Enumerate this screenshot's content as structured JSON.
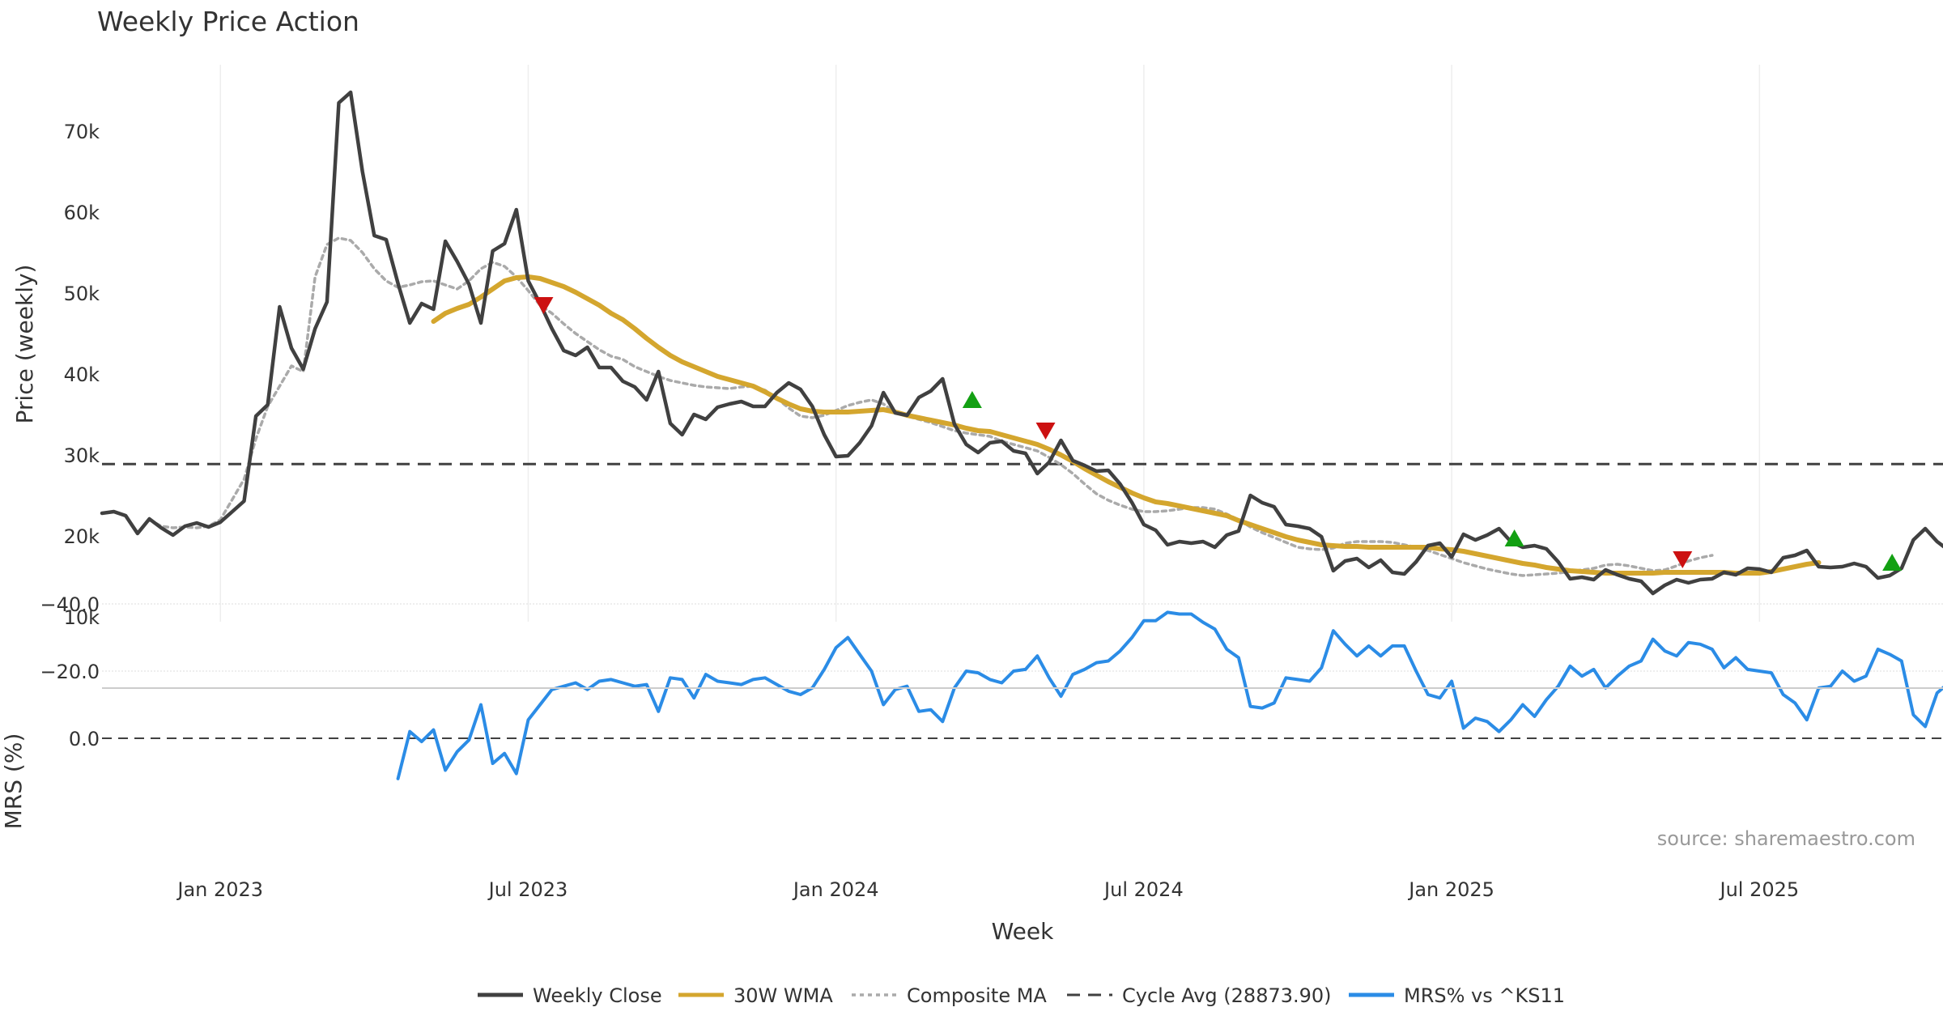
{
  "chart_data": {
    "type": "line",
    "title": "Weekly Price Action",
    "xlabel": "Week",
    "source_note": "source: sharemaestro.com",
    "x_ticks": [
      {
        "label": "Jan 2023",
        "week": 10
      },
      {
        "label": "Jul 2023",
        "week": 36
      },
      {
        "label": "Jan 2024",
        "week": 62
      },
      {
        "label": "Jul 2024",
        "week": 88
      },
      {
        "label": "Jan 2025",
        "week": 114
      },
      {
        "label": "Jul 2025",
        "week": 140
      }
    ],
    "x_range": [
      0,
      155.5
    ],
    "price_panel": {
      "ylabel": "Price (weekly)",
      "ylim": [
        10000,
        77000
      ],
      "yticks": [
        10000,
        20000,
        30000,
        40000,
        50000,
        60000,
        70000
      ],
      "ytick_labels": [
        "10k",
        "20k",
        "30k",
        "40k",
        "50k",
        "60k",
        "70k"
      ],
      "cycle_avg": 28873.9,
      "series": [
        {
          "name": "Weekly Close",
          "color": "#404040",
          "start": 0,
          "values": [
            22800,
            23000,
            22500,
            20300,
            22100,
            21000,
            20100,
            21200,
            21600,
            21100,
            21700,
            23000,
            24300,
            34800,
            36200,
            48300,
            43200,
            40600,
            45600,
            48900,
            73500,
            74800,
            65000,
            57100,
            56600,
            51200,
            46300,
            48700,
            48000,
            56400,
            53900,
            51100,
            46300,
            55200,
            56100,
            60300,
            51500,
            48700,
            45600,
            42900,
            42300,
            43300,
            40800,
            40800,
            39100,
            38400,
            36800,
            40300,
            33900,
            32500,
            35000,
            34400,
            35900,
            36300,
            36600,
            36000,
            36000,
            37700,
            38900,
            38100,
            36000,
            32500,
            29800,
            29900,
            31500,
            33600,
            37700,
            35200,
            34900,
            37100,
            37900,
            39400,
            33800,
            31300,
            30300,
            31500,
            31700,
            30500,
            30200,
            27700,
            29100,
            31800,
            29300,
            28700,
            28000,
            28100,
            26400,
            24100,
            21400,
            20700,
            18900,
            19300,
            19100,
            19300,
            18600,
            20100,
            20600,
            25000,
            24100,
            23600,
            21400,
            21200,
            20900,
            19900,
            15700,
            16900,
            17200,
            16100,
            17000,
            15500,
            15300,
            16800,
            18800,
            19100,
            17400,
            20200,
            19500,
            20100,
            20900,
            19300,
            18600,
            18800,
            18400,
            16800,
            14700,
            14900,
            14600,
            15800,
            15200,
            14700,
            14400,
            12900,
            13900,
            14600,
            14200,
            14600,
            14700,
            15500,
            15200,
            16000,
            15900,
            15500,
            17300,
            17600,
            18200,
            16200,
            16100,
            16200,
            16600,
            16200,
            14800,
            15100,
            16000,
            19500,
            20900,
            19300,
            18200
          ]
        },
        {
          "name": "30W WMA",
          "color": "#D4A62E",
          "start": 28,
          "values": [
            46500,
            47500,
            48100,
            48600,
            49500,
            50500,
            51500,
            51900,
            52000,
            51800,
            51300,
            50800,
            50100,
            49300,
            48500,
            47500,
            46700,
            45600,
            44400,
            43300,
            42300,
            41500,
            40900,
            40300,
            39700,
            39300,
            38900,
            38500,
            37800,
            37000,
            36300,
            35700,
            35400,
            35300,
            35300,
            35300,
            35400,
            35500,
            35600,
            35300,
            34900,
            34600,
            34300,
            34000,
            33700,
            33300,
            33000,
            32900,
            32500,
            32100,
            31700,
            31300,
            30700,
            30000,
            29200,
            28300,
            27500,
            26700,
            26000,
            25300,
            24700,
            24200,
            24000,
            23700,
            23400,
            23100,
            22800,
            22500,
            21900,
            21400,
            20900,
            20400,
            19900,
            19500,
            19200,
            18900,
            18800,
            18700,
            18700,
            18600,
            18600,
            18600,
            18600,
            18600,
            18600,
            18400,
            18300,
            18100,
            17800,
            17500,
            17200,
            16900,
            16600,
            16400,
            16100,
            15900,
            15700,
            15600,
            15500,
            15400,
            15400,
            15400,
            15400,
            15400,
            15500,
            15500,
            15500,
            15500,
            15500,
            15500,
            15400,
            15400,
            15400,
            15600,
            15900,
            16200,
            16500,
            16700
          ]
        },
        {
          "name": "Composite MA",
          "color": "#AAAAAA",
          "start": 4,
          "values": [
            22000,
            21200,
            21000,
            21100,
            21000,
            21200,
            22000,
            24500,
            27000,
            32000,
            36000,
            38500,
            41000,
            40300,
            52000,
            56000,
            56800,
            56500,
            55000,
            53000,
            51500,
            50700,
            51000,
            51400,
            51500,
            51000,
            50500,
            51500,
            53000,
            53800,
            53300,
            52000,
            50300,
            48500,
            47500,
            46200,
            45000,
            44000,
            43000,
            42200,
            41800,
            40900,
            40300,
            39700,
            39200,
            38900,
            38600,
            38400,
            38300,
            38200,
            38400,
            38500,
            38000,
            37000,
            35800,
            34800,
            34600,
            34900,
            35500,
            36100,
            36500,
            36800,
            36300,
            35200,
            34800,
            34400,
            34000,
            33500,
            33000,
            32700,
            32500,
            32300,
            31700,
            31300,
            30900,
            30500,
            29700,
            28800,
            27700,
            26400,
            25200,
            24400,
            23800,
            23300,
            23000,
            23000,
            23100,
            23300,
            23500,
            23500,
            23300,
            22700,
            22000,
            21100,
            20400,
            19800,
            19200,
            18600,
            18400,
            18300,
            18500,
            19100,
            19300,
            19300,
            19300,
            19200,
            18900,
            18600,
            18200,
            17700,
            17200,
            16700,
            16300,
            15900,
            15600,
            15300,
            15100,
            15200,
            15300,
            15400,
            15600,
            15800,
            16000,
            16400,
            16500,
            16300,
            16000,
            15700,
            15800,
            16300,
            16900,
            17300,
            17600
          ]
        }
      ],
      "signals": [
        {
          "type": "sell",
          "week": 37.3,
          "value": 48500,
          "color": "#CC1111"
        },
        {
          "type": "buy",
          "week": 73.5,
          "value": 36800,
          "color": "#13A013"
        },
        {
          "type": "sell",
          "week": 79.7,
          "value": 33000,
          "color": "#CC1111"
        },
        {
          "type": "buy",
          "week": 119.3,
          "value": 19700,
          "color": "#13A013"
        },
        {
          "type": "sell",
          "week": 133.5,
          "value": 17100,
          "color": "#CC1111"
        },
        {
          "type": "buy",
          "week": 151.2,
          "value": 16700,
          "color": "#13A013"
        }
      ]
    },
    "mrs_panel": {
      "ylabel": "MRS (%)",
      "ylim": [
        -40,
        15
      ],
      "yticks": [
        0,
        -20,
        -40
      ],
      "ytick_labels": [
        "0.0",
        "−20.0",
        "−40.0"
      ],
      "series": [
        {
          "name": "MRS% vs ^KS11",
          "color": "#2B8CE6",
          "start": 25,
          "values": [
            12.0,
            -2.0,
            1.0,
            -2.5,
            9.5,
            4.0,
            0.5,
            -10.0,
            7.5,
            4.5,
            10.5,
            -5.5,
            -10.0,
            -14.5,
            -15.5,
            -16.5,
            -14.5,
            -17.0,
            -17.5,
            -16.5,
            -15.5,
            -16.0,
            -8.0,
            -18.0,
            -17.5,
            -12.0,
            -19.0,
            -17.0,
            -16.5,
            -16.0,
            -17.5,
            -18.0,
            -16.0,
            -14.0,
            -13.0,
            -15.0,
            -20.5,
            -27.0,
            -30.0,
            -25.0,
            -20.0,
            -10.0,
            -14.5,
            -15.5,
            -8.0,
            -8.5,
            -5.0,
            -15.0,
            -20.0,
            -19.5,
            -17.5,
            -16.5,
            -20.0,
            -20.5,
            -24.5,
            -18.0,
            -12.5,
            -19.0,
            -20.5,
            -22.5,
            -23.0,
            -26.0,
            -30.0,
            -35.0,
            -35.0,
            -37.5,
            -37.0,
            -37.0,
            -34.5,
            -32.5,
            -26.5,
            -24.0,
            -9.5,
            -9.0,
            -10.5,
            -18.0,
            -17.5,
            -17.0,
            -21.0,
            -32.0,
            -28.0,
            -24.5,
            -27.5,
            -24.5,
            -27.5,
            -27.5,
            -20.0,
            -13.0,
            -12.0,
            -17.0,
            -3.0,
            -6.0,
            -5.0,
            -2.0,
            -5.5,
            -10.0,
            -6.5,
            -11.5,
            -15.5,
            -21.5,
            -18.5,
            -20.5,
            -15.0,
            -18.5,
            -21.5,
            -23.0,
            -29.5,
            -26.0,
            -24.5,
            -28.5,
            -28.0,
            -26.5,
            -21.0,
            -24.0,
            -20.5,
            -20.0,
            -19.5,
            -13.0,
            -10.5,
            -5.5,
            -15.0,
            -15.5,
            -20.0,
            -17.0,
            -18.5,
            -26.5,
            -25.0,
            -23.0,
            -7.0,
            -3.5,
            -13.5,
            -16.5
          ]
        }
      ]
    },
    "legend": {
      "position": "bottom-center",
      "items": [
        {
          "label": "Weekly Close",
          "color": "#404040",
          "style": "solid"
        },
        {
          "label": "30W WMA",
          "color": "#D4A62E",
          "style": "solid"
        },
        {
          "label": "Composite MA",
          "color": "#AAAAAA",
          "style": "dotted"
        },
        {
          "label": "Cycle Avg (28873.90)",
          "color": "#404040",
          "style": "dashed"
        },
        {
          "label": "MRS% vs ^KS11",
          "color": "#2B8CE6",
          "style": "solid"
        }
      ]
    }
  }
}
